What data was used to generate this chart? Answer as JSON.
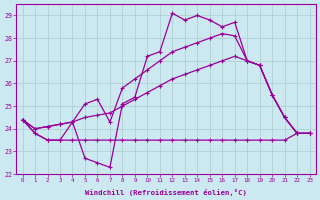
{
  "xlabel": "Windchill (Refroidissement éolien,°C)",
  "background_color": "#cce8f0",
  "grid_color": "#aacccc",
  "line_color": "#990099",
  "xlim": [
    -0.5,
    23.5
  ],
  "ylim": [
    22,
    29.5
  ],
  "yticks": [
    22,
    23,
    24,
    25,
    26,
    27,
    28,
    29
  ],
  "xticks": [
    0,
    1,
    2,
    3,
    4,
    5,
    6,
    7,
    8,
    9,
    10,
    11,
    12,
    13,
    14,
    15,
    16,
    17,
    18,
    19,
    20,
    21,
    22,
    23
  ],
  "series": [
    [
      24.4,
      23.8,
      23.5,
      23.5,
      24.3,
      22.7,
      22.5,
      22.3,
      25.1,
      25.4,
      27.2,
      27.4,
      29.1,
      28.8,
      29.0,
      28.8,
      28.5,
      28.7,
      27.0,
      26.8,
      25.5,
      24.5,
      23.8,
      23.8
    ],
    [
      24.4,
      23.8,
      23.5,
      23.5,
      23.5,
      23.5,
      23.5,
      23.5,
      23.5,
      23.5,
      23.5,
      23.5,
      23.5,
      23.5,
      23.5,
      23.5,
      23.5,
      23.5,
      23.5,
      23.5,
      23.5,
      23.5,
      23.8,
      23.8
    ],
    [
      24.4,
      24.0,
      24.1,
      24.2,
      24.3,
      24.5,
      24.6,
      24.7,
      25.0,
      25.3,
      25.6,
      25.9,
      26.2,
      26.4,
      26.6,
      26.8,
      27.0,
      27.2,
      27.0,
      26.8,
      25.5,
      24.5,
      23.8,
      23.8
    ],
    [
      24.4,
      24.0,
      24.1,
      24.2,
      24.3,
      25.1,
      25.3,
      24.3,
      25.8,
      26.2,
      26.6,
      27.0,
      27.4,
      27.6,
      27.8,
      28.0,
      28.2,
      28.1,
      27.0,
      26.8,
      25.5,
      24.5,
      23.8,
      23.8
    ]
  ]
}
